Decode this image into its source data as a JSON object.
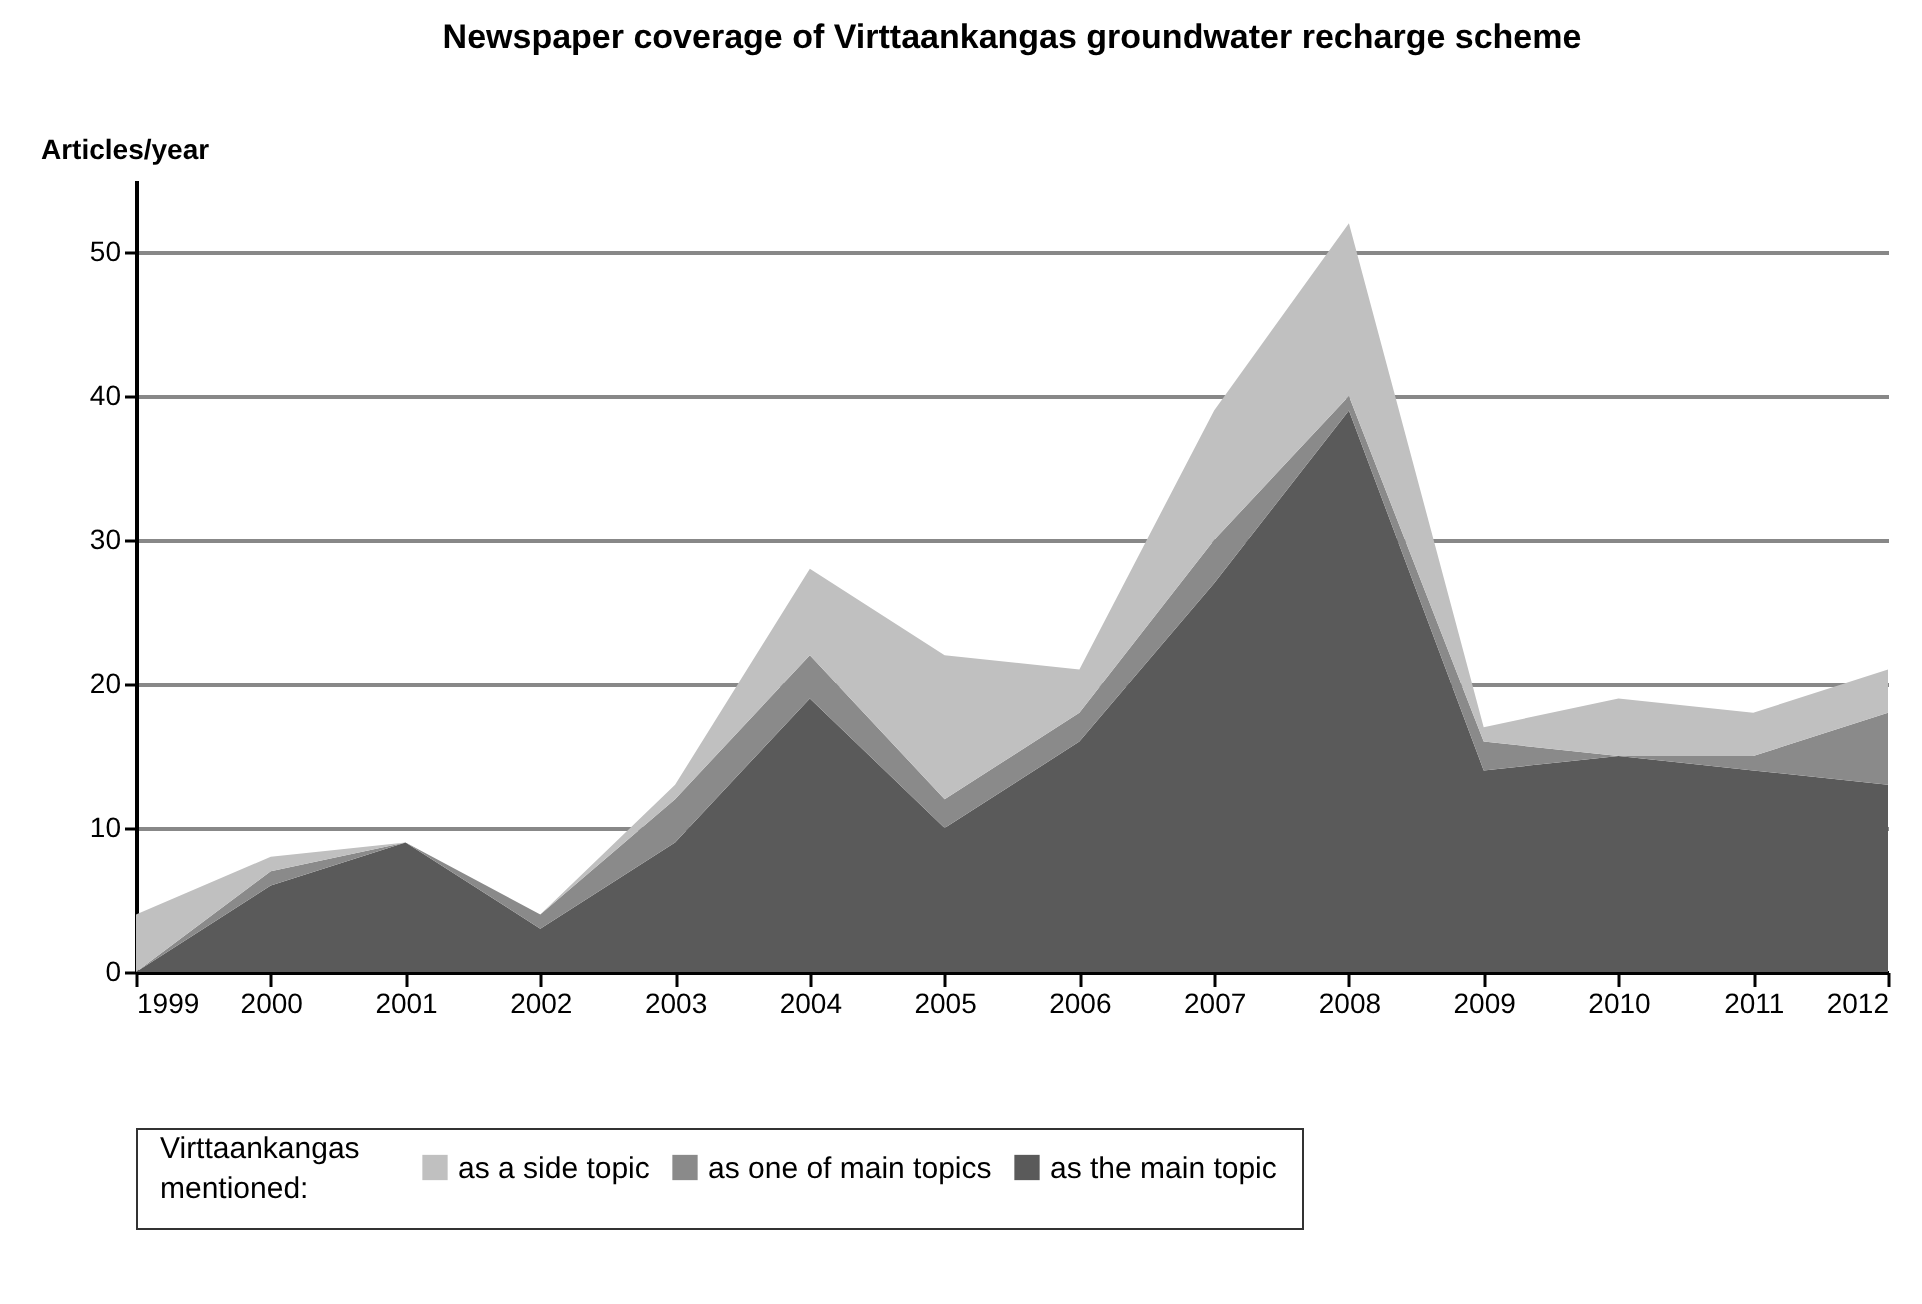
{
  "chart_data": {
    "type": "area",
    "title": "Newspaper coverage of Virttaankangas groundwater recharge scheme",
    "ylabel": "Articles/year",
    "legend_title": "Virttaankangas mentioned:",
    "stacked": true,
    "legend": "bottom",
    "grid": "y",
    "x": [
      1999,
      2000,
      2001,
      2002,
      2003,
      2004,
      2005,
      2006,
      2007,
      2008,
      2009,
      2010,
      2011,
      2012
    ],
    "xlim": [
      1999,
      2012
    ],
    "xticks": [
      1999,
      2000,
      2001,
      2002,
      2003,
      2004,
      2005,
      2006,
      2007,
      2008,
      2009,
      2010,
      2011,
      2012
    ],
    "ylim": [
      0,
      55
    ],
    "yticks": [
      0,
      10,
      20,
      30,
      40,
      50
    ],
    "series": [
      {
        "name": "as the main topic",
        "color": "#5a5a5a",
        "values": [
          0,
          6,
          9,
          3,
          9,
          19,
          10,
          16,
          27,
          39,
          14,
          15,
          14,
          13
        ]
      },
      {
        "name": "as one of main topics",
        "color": "#8a8a8a",
        "values": [
          0,
          1,
          0,
          1,
          3,
          3,
          2,
          2,
          3,
          1,
          2,
          0,
          1,
          5
        ]
      },
      {
        "name": "as a side topic",
        "color": "#c0c0c0",
        "values": [
          4,
          1,
          0,
          0,
          1,
          6,
          10,
          3,
          9,
          12,
          1,
          4,
          3,
          3
        ]
      }
    ]
  }
}
